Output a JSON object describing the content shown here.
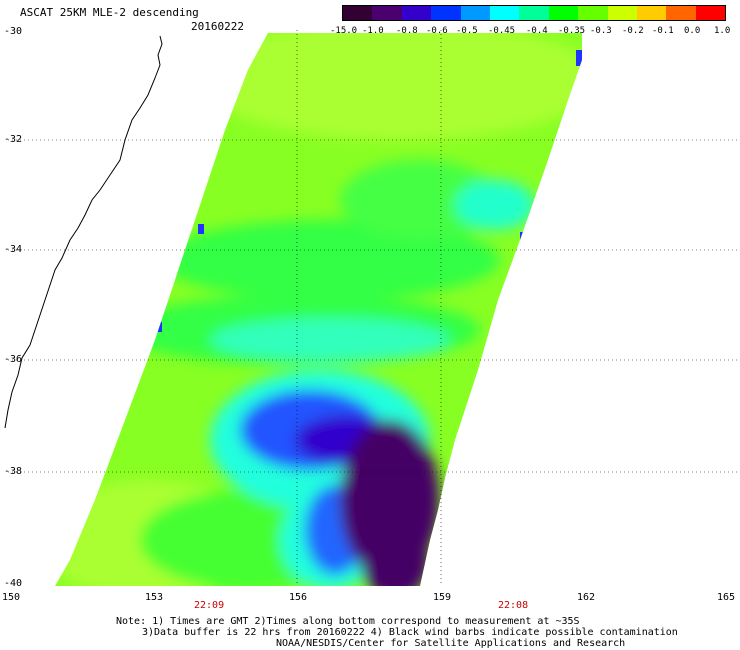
{
  "title": "ASCAT 25KM MLE-2 descending",
  "date": "20160222",
  "colorbar": {
    "ticks": [
      "-15.0",
      "-1.0",
      "-0.8",
      "-0.6",
      "-0.5",
      "-0.45",
      "-0.4",
      "-0.35",
      "-0.3",
      "-0.2",
      "-0.1",
      "0.0",
      "1.0"
    ],
    "colors": [
      "#330033",
      "#4b0070",
      "#3300cc",
      "#0033ff",
      "#0099ff",
      "#00ffff",
      "#00ff99",
      "#00ff00",
      "#66ff00",
      "#ccff00",
      "#ffcc00",
      "#ff6600",
      "#ff0000"
    ]
  },
  "axes": {
    "lat_labels": [
      "-30",
      "-32",
      "-34",
      "-36",
      "-38",
      "-40"
    ],
    "lon_labels": [
      "150",
      "153",
      "156",
      "159",
      "162",
      "165"
    ]
  },
  "times": [
    "22:09",
    "22:08"
  ],
  "notes": [
    "Note: 1) Times are GMT 2)Times along bottom correspond to measurement at ~35S",
    "3)Data buffer is 22 hrs from 20160222 4) Black wind barbs indicate possible contamination",
    "NOAA/NESDIS/Center for Satellite Applications and Research"
  ],
  "swath_colors": {
    "background_green": "#88ff22",
    "yellow_green": "#aaff33",
    "green": "#33ff44",
    "cyan": "#22ffcc",
    "blue": "#2255ff",
    "dark_blue": "#3300cc",
    "purple": "#440066"
  }
}
